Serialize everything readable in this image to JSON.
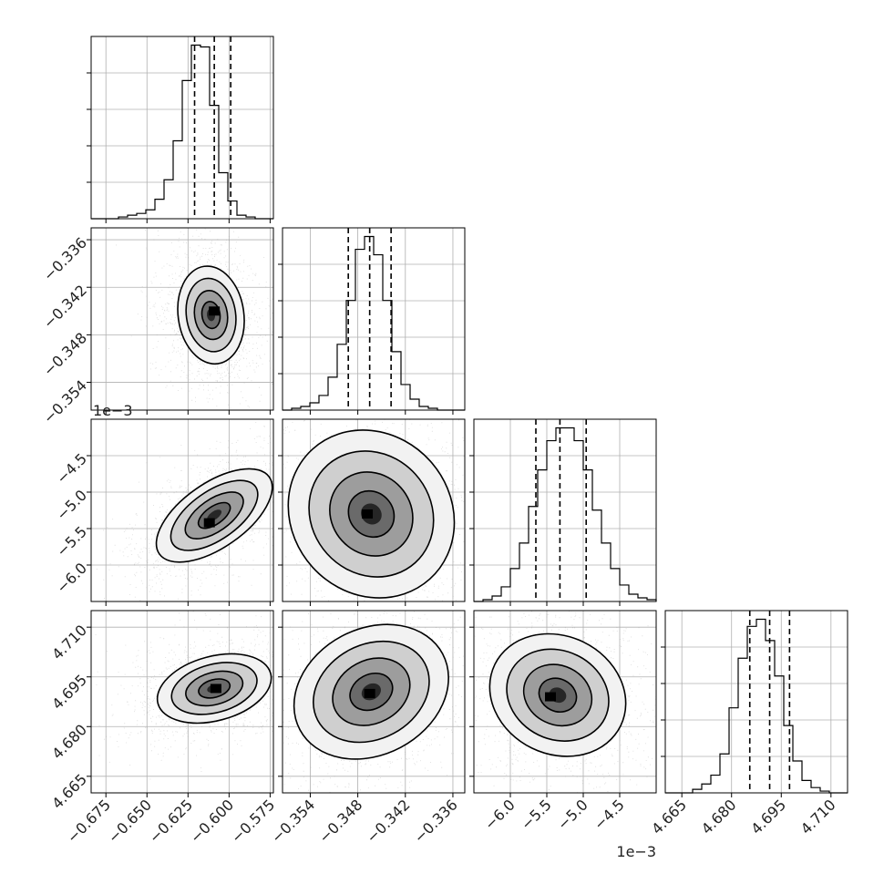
{
  "chart_data": {
    "type": "corner",
    "grid": true,
    "parameters": [
      {
        "range": [
          -0.684,
          -0.573
        ],
        "ticks": [
          -0.675,
          -0.65,
          -0.625,
          -0.6,
          -0.575
        ],
        "tick_labels": [
          "−0.675",
          "−0.650",
          "−0.625",
          "−0.600",
          "−0.575"
        ],
        "quantiles": [
          -0.621,
          -0.609,
          -0.599
        ],
        "hist": [
          0,
          0,
          0,
          1,
          2,
          3,
          5,
          11,
          22,
          44,
          78,
          98,
          97,
          64,
          26,
          10,
          2,
          1,
          0,
          0
        ]
      },
      {
        "range": [
          -0.3575,
          -0.3345
        ],
        "ticks": [
          -0.354,
          -0.348,
          -0.342,
          -0.336
        ],
        "tick_labels": [
          "−0.354",
          "−0.348",
          "−0.342",
          "−0.336"
        ],
        "quantiles": [
          -0.3492,
          -0.3465,
          -0.3438
        ],
        "hist": [
          0,
          1,
          2,
          4,
          8,
          18,
          36,
          60,
          88,
          95,
          85,
          60,
          32,
          14,
          6,
          2,
          1,
          0,
          0,
          0
        ]
      },
      {
        "range": [
          -6.5,
          -4.0
        ],
        "ticks": [
          -6.0,
          -5.5,
          -5.0,
          -4.5
        ],
        "tick_labels": [
          "−6.0",
          "−5.5",
          "−5.0",
          "−4.5"
        ],
        "offset_label": "1e−3",
        "quantiles": [
          -5.65,
          -5.32,
          -4.96
        ],
        "hist": [
          0,
          1,
          3,
          8,
          18,
          32,
          52,
          72,
          88,
          95,
          95,
          88,
          72,
          50,
          32,
          18,
          9,
          4,
          2,
          1
        ]
      },
      {
        "range": [
          4.66,
          4.715
        ],
        "ticks": [
          4.665,
          4.68,
          4.695,
          4.71
        ],
        "tick_labels": [
          "4.665",
          "4.680",
          "4.695",
          "4.710"
        ],
        "quantiles": [
          4.6855,
          4.6915,
          4.6975
        ],
        "hist": [
          0,
          0,
          0,
          2,
          5,
          10,
          22,
          48,
          76,
          94,
          98,
          86,
          66,
          38,
          18,
          7,
          3,
          1,
          0,
          0
        ]
      }
    ],
    "pairs": [
      {
        "row": 1,
        "col": 0,
        "center": [
          -0.611,
          -0.3455
        ],
        "sx": 0.01,
        "sy": 0.0031,
        "angle": -8,
        "dense_core": [
          -0.609,
          -0.345
        ]
      },
      {
        "row": 2,
        "col": 0,
        "center": [
          -0.609,
          -5.32
        ],
        "sx": 0.0098,
        "sy": 0.46,
        "angle": 55,
        "dense_core": [
          -0.612,
          -5.42
        ]
      },
      {
        "row": 2,
        "col": 1,
        "center": [
          -0.3463,
          -5.3
        ],
        "sx": 0.005,
        "sy": 0.6,
        "angle": -42,
        "dense_core": [
          -0.3468,
          -5.3
        ]
      },
      {
        "row": 3,
        "col": 0,
        "center": [
          -0.609,
          4.6915
        ],
        "sx": 0.0098,
        "sy": 0.0088,
        "angle": 75,
        "dense_core": [
          -0.608,
          4.6915
        ]
      },
      {
        "row": 3,
        "col": 1,
        "center": [
          -0.3463,
          4.6905
        ],
        "sx": 0.0051,
        "sy": 0.0095,
        "angle": -28,
        "dense_core": [
          -0.3465,
          4.69
        ]
      },
      {
        "row": 3,
        "col": 2,
        "center": [
          -5.35,
          4.6895
        ],
        "sx": 0.48,
        "sy": 0.0089,
        "angle": 26,
        "dense_core": [
          -5.45,
          4.689
        ]
      }
    ]
  }
}
